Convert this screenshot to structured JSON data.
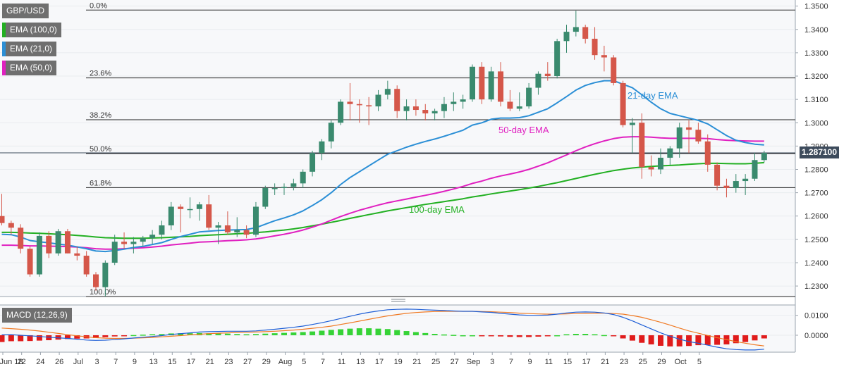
{
  "instrument": "GBP/USD",
  "price_label": "1.287100",
  "legends": {
    "ema100": "EMA (100,0)",
    "ema21": "EMA (21,0)",
    "ema50": "EMA (50,0)",
    "macd": "MACD (12,26,9)"
  },
  "annotations": {
    "ema21": "21-day EMA",
    "ema50": "50-day EMA",
    "ema100": "100-day EMA"
  },
  "colors": {
    "up": "#3a8a6e",
    "down": "#d5574a",
    "ema21": "#2b8fd6",
    "ema50": "#e020c0",
    "ema100": "#22b022",
    "macd_line": "#1f5fd6",
    "signal_line": "#f07a24",
    "hist_pos": "#36d336",
    "hist_neg": "#e01b1b"
  },
  "chart_data": [
    {
      "type": "candlestick",
      "title": "GBP/USD",
      "x_ticks": [
        "Jun 18",
        "22",
        "24",
        "26",
        "Jul",
        "3",
        "7",
        "9",
        "13",
        "15",
        "17",
        "21",
        "23",
        "27",
        "29",
        "Aug",
        "5",
        "7",
        "11",
        "13",
        "17",
        "19",
        "21",
        "25",
        "27",
        "Sep",
        "3",
        "7",
        "9",
        "11",
        "15",
        "17",
        "21",
        "23",
        "25",
        "29",
        "Oct",
        "5"
      ],
      "y_ticks": [
        "1.3500",
        "1.3400",
        "1.3300",
        "1.3200",
        "1.3100",
        "1.3000",
        "1.2900",
        "1.2800",
        "1.2700",
        "1.2600",
        "1.2500",
        "1.2400",
        "1.2300"
      ],
      "ylim": [
        1.2255,
        1.3505
      ],
      "candles": [
        {
          "o": 1.26,
          "h": 1.2695,
          "l": 1.256,
          "c": 1.257
        },
        {
          "o": 1.257,
          "h": 1.258,
          "l": 1.252,
          "c": 1.255
        },
        {
          "o": 1.255,
          "h": 1.2565,
          "l": 1.244,
          "c": 1.246
        },
        {
          "o": 1.246,
          "h": 1.247,
          "l": 1.234,
          "c": 1.235
        },
        {
          "o": 1.235,
          "h": 1.253,
          "l": 1.234,
          "c": 1.2515
        },
        {
          "o": 1.2515,
          "h": 1.2535,
          "l": 1.242,
          "c": 1.244
        },
        {
          "o": 1.244,
          "h": 1.2545,
          "l": 1.243,
          "c": 1.2535
        },
        {
          "o": 1.2535,
          "h": 1.2545,
          "l": 1.244,
          "c": 1.244
        },
        {
          "o": 1.244,
          "h": 1.247,
          "l": 1.241,
          "c": 1.243
        },
        {
          "o": 1.243,
          "h": 1.245,
          "l": 1.234,
          "c": 1.235
        },
        {
          "o": 1.235,
          "h": 1.236,
          "l": 1.228,
          "c": 1.2295
        },
        {
          "o": 1.2295,
          "h": 1.241,
          "l": 1.2255,
          "c": 1.24
        },
        {
          "o": 1.24,
          "h": 1.252,
          "l": 1.239,
          "c": 1.249
        },
        {
          "o": 1.249,
          "h": 1.253,
          "l": 1.246,
          "c": 1.248
        },
        {
          "o": 1.248,
          "h": 1.251,
          "l": 1.244,
          "c": 1.249
        },
        {
          "o": 1.249,
          "h": 1.2515,
          "l": 1.247,
          "c": 1.2505
        },
        {
          "o": 1.2505,
          "h": 1.254,
          "l": 1.248,
          "c": 1.252
        },
        {
          "o": 1.252,
          "h": 1.258,
          "l": 1.25,
          "c": 1.256
        },
        {
          "o": 1.256,
          "h": 1.266,
          "l": 1.254,
          "c": 1.264
        },
        {
          "o": 1.264,
          "h": 1.265,
          "l": 1.253,
          "c": 1.263
        },
        {
          "o": 1.263,
          "h": 1.268,
          "l": 1.259,
          "c": 1.263
        },
        {
          "o": 1.263,
          "h": 1.266,
          "l": 1.258,
          "c": 1.265
        },
        {
          "o": 1.265,
          "h": 1.269,
          "l": 1.254,
          "c": 1.255
        },
        {
          "o": 1.255,
          "h": 1.2575,
          "l": 1.248,
          "c": 1.256
        },
        {
          "o": 1.256,
          "h": 1.262,
          "l": 1.252,
          "c": 1.253
        },
        {
          "o": 1.253,
          "h": 1.2595,
          "l": 1.251,
          "c": 1.254
        },
        {
          "o": 1.254,
          "h": 1.256,
          "l": 1.2505,
          "c": 1.252
        },
        {
          "o": 1.252,
          "h": 1.266,
          "l": 1.251,
          "c": 1.264
        },
        {
          "o": 1.264,
          "h": 1.273,
          "l": 1.263,
          "c": 1.272
        },
        {
          "o": 1.272,
          "h": 1.274,
          "l": 1.269,
          "c": 1.272
        },
        {
          "o": 1.272,
          "h": 1.274,
          "l": 1.269,
          "c": 1.2725
        },
        {
          "o": 1.2725,
          "h": 1.276,
          "l": 1.271,
          "c": 1.274
        },
        {
          "o": 1.274,
          "h": 1.28,
          "l": 1.272,
          "c": 1.279
        },
        {
          "o": 1.279,
          "h": 1.288,
          "l": 1.277,
          "c": 1.287
        },
        {
          "o": 1.287,
          "h": 1.293,
          "l": 1.284,
          "c": 1.292
        },
        {
          "o": 1.292,
          "h": 1.301,
          "l": 1.289,
          "c": 1.3
        },
        {
          "o": 1.3,
          "h": 1.31,
          "l": 1.299,
          "c": 1.309
        },
        {
          "o": 1.309,
          "h": 1.317,
          "l": 1.301,
          "c": 1.308
        },
        {
          "o": 1.308,
          "h": 1.31,
          "l": 1.3,
          "c": 1.3075
        },
        {
          "o": 1.3075,
          "h": 1.311,
          "l": 1.299,
          "c": 1.307
        },
        {
          "o": 1.307,
          "h": 1.314,
          "l": 1.305,
          "c": 1.312
        },
        {
          "o": 1.312,
          "h": 1.318,
          "l": 1.31,
          "c": 1.3145
        },
        {
          "o": 1.3145,
          "h": 1.316,
          "l": 1.302,
          "c": 1.305
        },
        {
          "o": 1.305,
          "h": 1.31,
          "l": 1.301,
          "c": 1.307
        },
        {
          "o": 1.307,
          "h": 1.31,
          "l": 1.303,
          "c": 1.3055
        },
        {
          "o": 1.3055,
          "h": 1.308,
          "l": 1.301,
          "c": 1.304
        },
        {
          "o": 1.304,
          "h": 1.306,
          "l": 1.301,
          "c": 1.305
        },
        {
          "o": 1.305,
          "h": 1.311,
          "l": 1.302,
          "c": 1.308
        },
        {
          "o": 1.308,
          "h": 1.313,
          "l": 1.305,
          "c": 1.309
        },
        {
          "o": 1.309,
          "h": 1.312,
          "l": 1.306,
          "c": 1.31
        },
        {
          "o": 1.31,
          "h": 1.325,
          "l": 1.309,
          "c": 1.324
        },
        {
          "o": 1.324,
          "h": 1.326,
          "l": 1.308,
          "c": 1.31
        },
        {
          "o": 1.31,
          "h": 1.324,
          "l": 1.309,
          "c": 1.322
        },
        {
          "o": 1.322,
          "h": 1.326,
          "l": 1.307,
          "c": 1.309
        },
        {
          "o": 1.309,
          "h": 1.314,
          "l": 1.305,
          "c": 1.306
        },
        {
          "o": 1.306,
          "h": 1.313,
          "l": 1.305,
          "c": 1.307
        },
        {
          "o": 1.307,
          "h": 1.317,
          "l": 1.306,
          "c": 1.315
        },
        {
          "o": 1.315,
          "h": 1.322,
          "l": 1.312,
          "c": 1.321
        },
        {
          "o": 1.321,
          "h": 1.326,
          "l": 1.318,
          "c": 1.32
        },
        {
          "o": 1.32,
          "h": 1.336,
          "l": 1.319,
          "c": 1.335
        },
        {
          "o": 1.335,
          "h": 1.342,
          "l": 1.33,
          "c": 1.339
        },
        {
          "o": 1.339,
          "h": 1.348,
          "l": 1.337,
          "c": 1.341
        },
        {
          "o": 1.341,
          "h": 1.342,
          "l": 1.334,
          "c": 1.336
        },
        {
          "o": 1.336,
          "h": 1.341,
          "l": 1.327,
          "c": 1.329
        },
        {
          "o": 1.329,
          "h": 1.333,
          "l": 1.322,
          "c": 1.328
        },
        {
          "o": 1.328,
          "h": 1.329,
          "l": 1.316,
          "c": 1.317
        },
        {
          "o": 1.317,
          "h": 1.318,
          "l": 1.298,
          "c": 1.299
        },
        {
          "o": 1.299,
          "h": 1.302,
          "l": 1.287,
          "c": 1.3
        },
        {
          "o": 1.3,
          "h": 1.304,
          "l": 1.276,
          "c": 1.281
        },
        {
          "o": 1.281,
          "h": 1.286,
          "l": 1.277,
          "c": 1.28
        },
        {
          "o": 1.28,
          "h": 1.289,
          "l": 1.278,
          "c": 1.285
        },
        {
          "o": 1.285,
          "h": 1.29,
          "l": 1.282,
          "c": 1.289
        },
        {
          "o": 1.289,
          "h": 1.3,
          "l": 1.285,
          "c": 1.298
        },
        {
          "o": 1.298,
          "h": 1.301,
          "l": 1.287,
          "c": 1.297
        },
        {
          "o": 1.297,
          "h": 1.3,
          "l": 1.291,
          "c": 1.292
        },
        {
          "o": 1.292,
          "h": 1.295,
          "l": 1.279,
          "c": 1.282
        },
        {
          "o": 1.282,
          "h": 1.283,
          "l": 1.271,
          "c": 1.273
        },
        {
          "o": 1.273,
          "h": 1.276,
          "l": 1.268,
          "c": 1.272
        },
        {
          "o": 1.272,
          "h": 1.278,
          "l": 1.27,
          "c": 1.275
        },
        {
          "o": 1.275,
          "h": 1.278,
          "l": 1.269,
          "c": 1.276
        },
        {
          "o": 1.276,
          "h": 1.287,
          "l": 1.275,
          "c": 1.284
        },
        {
          "o": 1.284,
          "h": 1.288,
          "l": 1.283,
          "c": 1.2871
        }
      ],
      "ema21": [
        1.2522,
        1.252,
        1.251,
        1.2495,
        1.249,
        1.2485,
        1.248,
        1.2475,
        1.2468,
        1.246,
        1.245,
        1.2448,
        1.2452,
        1.2458,
        1.2465,
        1.247,
        1.2478,
        1.2486,
        1.25,
        1.2512,
        1.2522,
        1.2532,
        1.2535,
        1.2538,
        1.254,
        1.2541,
        1.2542,
        1.255,
        1.2565,
        1.258,
        1.2592,
        1.2605,
        1.2622,
        1.2645,
        1.267,
        1.27,
        1.2735,
        1.2765,
        1.279,
        1.2815,
        1.284,
        1.2865,
        1.288,
        1.2895,
        1.2908,
        1.292,
        1.293,
        1.2942,
        1.2955,
        1.2968,
        1.299,
        1.3,
        1.3015,
        1.302,
        1.302,
        1.3022,
        1.303,
        1.3045,
        1.306,
        1.3085,
        1.3112,
        1.314,
        1.316,
        1.3172,
        1.318,
        1.318,
        1.3165,
        1.315,
        1.312,
        1.3088,
        1.306,
        1.304,
        1.303,
        1.302,
        1.301,
        1.2995,
        1.297,
        1.2945,
        1.2925,
        1.2915,
        1.2908,
        1.2905
      ],
      "ema50": [
        1.2475,
        1.2475,
        1.2474,
        1.2472,
        1.2472,
        1.2471,
        1.247,
        1.2469,
        1.2467,
        1.2464,
        1.246,
        1.2458,
        1.2458,
        1.246,
        1.2462,
        1.2464,
        1.2467,
        1.2471,
        1.2476,
        1.248,
        1.2484,
        1.2488,
        1.249,
        1.2492,
        1.2494,
        1.2496,
        1.2498,
        1.2502,
        1.2508,
        1.2515,
        1.2522,
        1.253,
        1.254,
        1.2552,
        1.2566,
        1.2582,
        1.2598,
        1.2612,
        1.2625,
        1.2636,
        1.2647,
        1.2657,
        1.2665,
        1.2673,
        1.2681,
        1.2689,
        1.2697,
        1.2706,
        1.2716,
        1.2727,
        1.274,
        1.275,
        1.2762,
        1.2772,
        1.278,
        1.2789,
        1.28,
        1.2814,
        1.2828,
        1.2845,
        1.2862,
        1.288,
        1.2896,
        1.291,
        1.2922,
        1.2932,
        1.2938,
        1.294,
        1.294,
        1.2938,
        1.2935,
        1.2933,
        1.2933,
        1.2933,
        1.2933,
        1.2932,
        1.2928,
        1.2925,
        1.2923,
        1.2922,
        1.2921,
        1.2921
      ],
      "ema100": [
        1.253,
        1.253,
        1.2529,
        1.2527,
        1.2526,
        1.2524,
        1.2522,
        1.252,
        1.2517,
        1.2514,
        1.251,
        1.2507,
        1.2506,
        1.2505,
        1.2505,
        1.2505,
        1.2506,
        1.2507,
        1.2509,
        1.2511,
        1.2513,
        1.2516,
        1.2518,
        1.252,
        1.2522,
        1.2524,
        1.2526,
        1.2529,
        1.2532,
        1.2536,
        1.254,
        1.2545,
        1.2551,
        1.2558,
        1.2565,
        1.2573,
        1.2581,
        1.259,
        1.2598,
        1.2606,
        1.2614,
        1.2622,
        1.2629,
        1.2636,
        1.2643,
        1.265,
        1.2656,
        1.2662,
        1.2668,
        1.2674,
        1.2682,
        1.2688,
        1.2695,
        1.2701,
        1.2707,
        1.2713,
        1.272,
        1.2727,
        1.2735,
        1.2743,
        1.2752,
        1.2761,
        1.277,
        1.2779,
        1.2787,
        1.2795,
        1.2801,
        1.2806,
        1.281,
        1.2813,
        1.2815,
        1.2817,
        1.2819,
        1.2822,
        1.2824,
        1.2826,
        1.2826,
        1.2825,
        1.2824,
        1.2824,
        1.2826,
        1.2829
      ],
      "fibonacci": [
        {
          "label": "0.0%",
          "value": 1.3483
        },
        {
          "label": "23.6%",
          "value": 1.3192
        },
        {
          "label": "38.2%",
          "value": 1.3013
        },
        {
          "label": "50.0%",
          "value": 1.2868
        },
        {
          "label": "61.8%",
          "value": 1.2722
        },
        {
          "label": "100.0%",
          "value": 1.2255
        }
      ],
      "last_price": 1.2871
    },
    {
      "type": "bar",
      "title": "MACD (12,26,9)",
      "y_ticks": [
        "0.0100",
        "0.0000"
      ],
      "ylim": [
        -0.0085,
        0.0152
      ],
      "macd": [
        0.0002,
        0.0003,
        0.0,
        -0.0003,
        -0.0006,
        -0.001,
        -0.0013,
        -0.0016,
        -0.002,
        -0.0024,
        -0.0026,
        -0.0025,
        -0.0022,
        -0.0018,
        -0.0014,
        -0.001,
        -0.0006,
        -0.0002,
        0.0004,
        0.0008,
        0.0012,
        0.0016,
        0.0018,
        0.0019,
        0.002,
        0.002,
        0.002,
        0.0022,
        0.0026,
        0.003,
        0.0035,
        0.004,
        0.0046,
        0.0054,
        0.0063,
        0.0073,
        0.0084,
        0.0095,
        0.0106,
        0.0115,
        0.0122,
        0.0128,
        0.013,
        0.0131,
        0.013,
        0.0128,
        0.0126,
        0.0124,
        0.0122,
        0.012,
        0.012,
        0.0117,
        0.0115,
        0.011,
        0.0106,
        0.0102,
        0.01,
        0.01,
        0.0101,
        0.0106,
        0.0112,
        0.0116,
        0.0117,
        0.0116,
        0.0112,
        0.0104,
        0.009,
        0.0072,
        0.0052,
        0.0032,
        0.0012,
        -0.0005,
        -0.002,
        -0.0032,
        -0.004,
        -0.005,
        -0.006,
        -0.0068,
        -0.0072,
        -0.0074,
        -0.0074,
        -0.007
      ],
      "signal": [
        0.0036,
        0.0033,
        0.003,
        0.0026,
        0.0021,
        0.0015,
        0.0009,
        0.0003,
        -0.0003,
        -0.0008,
        -0.0012,
        -0.0015,
        -0.0016,
        -0.0016,
        -0.0015,
        -0.0013,
        -0.0011,
        -0.0008,
        -0.0005,
        -0.0002,
        0.0002,
        0.0005,
        0.0008,
        0.001,
        0.0012,
        0.0014,
        0.0015,
        0.0016,
        0.0018,
        0.002,
        0.0023,
        0.0026,
        0.003,
        0.0035,
        0.004,
        0.0046,
        0.0054,
        0.0062,
        0.0071,
        0.008,
        0.0089,
        0.0097,
        0.0104,
        0.011,
        0.0114,
        0.0117,
        0.0119,
        0.012,
        0.012,
        0.012,
        0.012,
        0.0119,
        0.0118,
        0.0116,
        0.0114,
        0.0111,
        0.0109,
        0.0107,
        0.0106,
        0.0106,
        0.0107,
        0.0109,
        0.011,
        0.0111,
        0.0111,
        0.0109,
        0.0106,
        0.0099,
        0.009,
        0.0078,
        0.0065,
        0.0051,
        0.0036,
        0.0022,
        0.001,
        -0.0001,
        -0.0012,
        -0.0022,
        -0.0032,
        -0.004,
        -0.0048,
        -0.0054
      ]
    }
  ]
}
